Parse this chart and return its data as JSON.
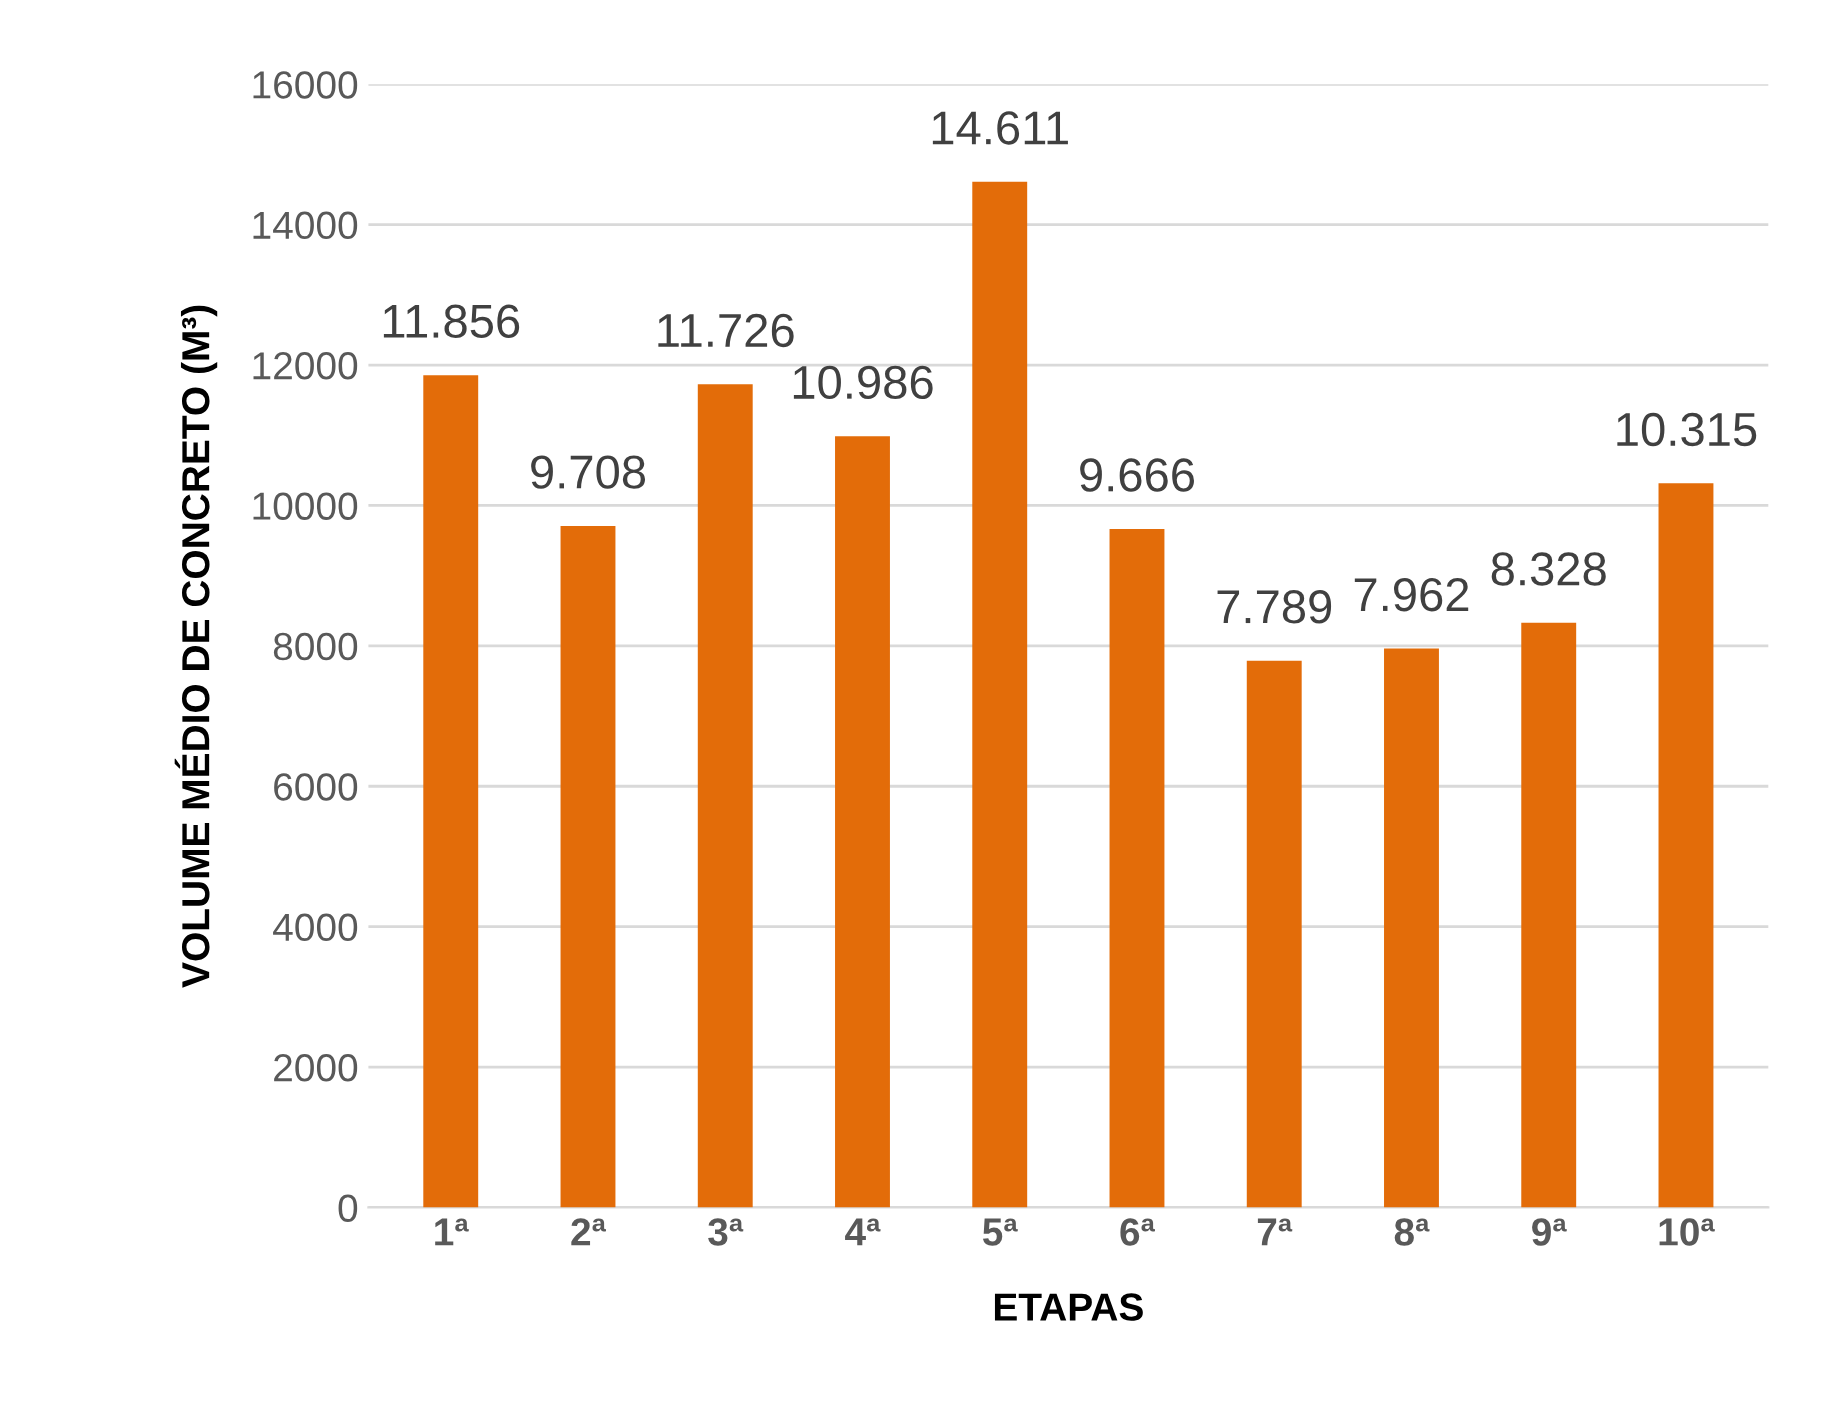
{
  "chart_data": {
    "type": "bar",
    "xlabel": "ETAPAS",
    "ylabel": "VOLUME MÉDIO DE CONCRETO (M³)",
    "categories": [
      "1ª",
      "2ª",
      "3ª",
      "4ª",
      "5ª",
      "6ª",
      "7ª",
      "8ª",
      "9ª",
      "10ª"
    ],
    "values": [
      11856,
      9708,
      11726,
      10986,
      14611,
      9666,
      7789,
      7962,
      8328,
      10315
    ],
    "value_labels": [
      "11.856",
      "9.708",
      "11.726",
      "10.986",
      "14.611",
      "9.666",
      "7.789",
      "7.962",
      "8.328",
      "10.315"
    ],
    "color": "#e36c09",
    "ylim": [
      0,
      16000
    ],
    "yticks": [
      0,
      2000,
      4000,
      6000,
      8000,
      10000,
      12000,
      14000,
      16000
    ],
    "grid": "y",
    "legend": false
  }
}
